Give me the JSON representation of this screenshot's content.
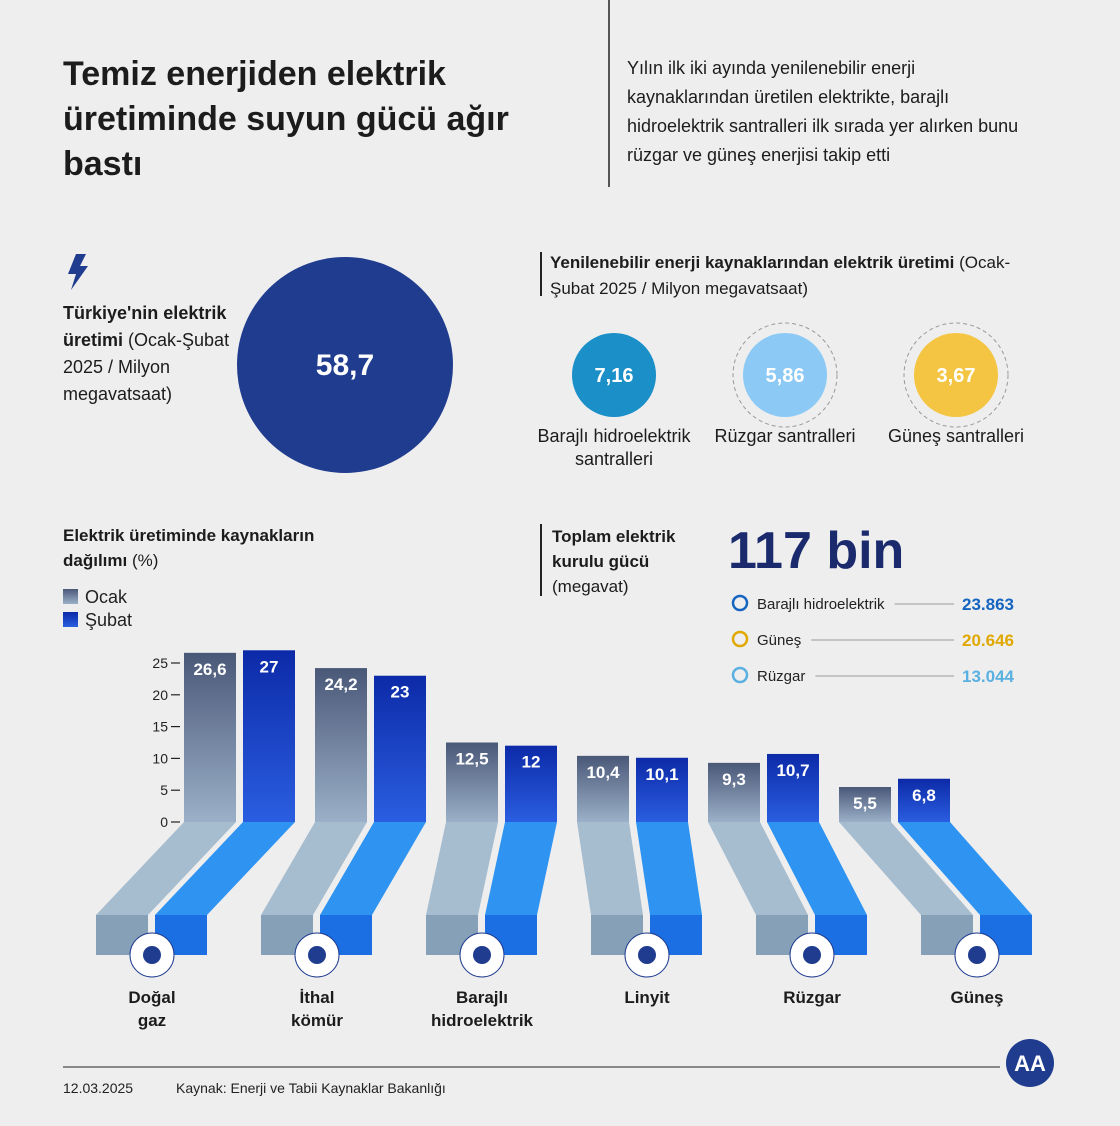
{
  "header": {
    "title": "Temiz enerjiden elektrik üretiminde suyun gücü ağır bastı",
    "summary": "Yılın ilk iki ayında yenilenebilir enerji kaynaklarından üretilen elektrikte, barajlı hidroelektrik santralleri ilk sırada yer alırken bunu rüzgar ve güneş enerjisi takip etti"
  },
  "production": {
    "title": "Türkiye'nin elektrik üretimi",
    "subtitle": "(Ocak-Şubat 2025 / Milyon megavatsaat)",
    "value": "58,7",
    "color": "#1f3c8f"
  },
  "renewables": {
    "title": "Yenilenebilir enerji kaynaklarından elektrik üretimi",
    "subtitle": "(Ocak-Şubat 2025 / Milyon megavatsaat)",
    "items": [
      {
        "value": "7,16",
        "label": "Barajlı hidroelektrik santralleri",
        "color": "#1a8fc8"
      },
      {
        "value": "5,86",
        "label": "Rüzgar santralleri",
        "color": "#8ccaf5"
      },
      {
        "value": "3,67",
        "label": "Güneş santralleri",
        "color": "#f4c542"
      }
    ]
  },
  "capacity": {
    "title": "Toplam elektrik kurulu gücü",
    "subtitle": "(megavat)",
    "total": "117 bin",
    "items": [
      {
        "name": "Barajlı hidroelektrik",
        "value": "23.863",
        "color": "#1565c0"
      },
      {
        "name": "Güneş",
        "value": "20.646",
        "color": "#e0a800"
      },
      {
        "name": "Rüzgar",
        "value": "13.044",
        "color": "#5ab0e0"
      }
    ]
  },
  "chart_data": {
    "type": "bar",
    "title": "Elektrik üretiminde kaynakların dağılımı",
    "unit": "(%)",
    "categories": [
      "Doğal gaz",
      "İthal kömür",
      "Barajlı hidroelektrik",
      "Linyit",
      "Rüzgar",
      "Güneş"
    ],
    "series": [
      {
        "name": "Ocak",
        "color": "#4a5878",
        "values": [
          26.6,
          24.2,
          12.5,
          10.4,
          9.3,
          5.5
        ],
        "value_labels": [
          "26,6",
          "24,2",
          "12,5",
          "10,4",
          "9,3",
          "5,5"
        ]
      },
      {
        "name": "Şubat",
        "color": "#0c2aa8",
        "values": [
          27,
          23,
          12,
          10.1,
          10.7,
          6.8
        ],
        "value_labels": [
          "27",
          "23",
          "12",
          "10,1",
          "10,7",
          "6,8"
        ]
      }
    ],
    "ylim": [
      0,
      27.5
    ],
    "yticks": [
      0,
      5,
      10,
      15,
      20,
      25
    ]
  },
  "footer": {
    "date": "12.03.2025",
    "source": "Kaynak: Enerji ve Tabii Kaynaklar Bakanlığı",
    "logo": "AA"
  }
}
